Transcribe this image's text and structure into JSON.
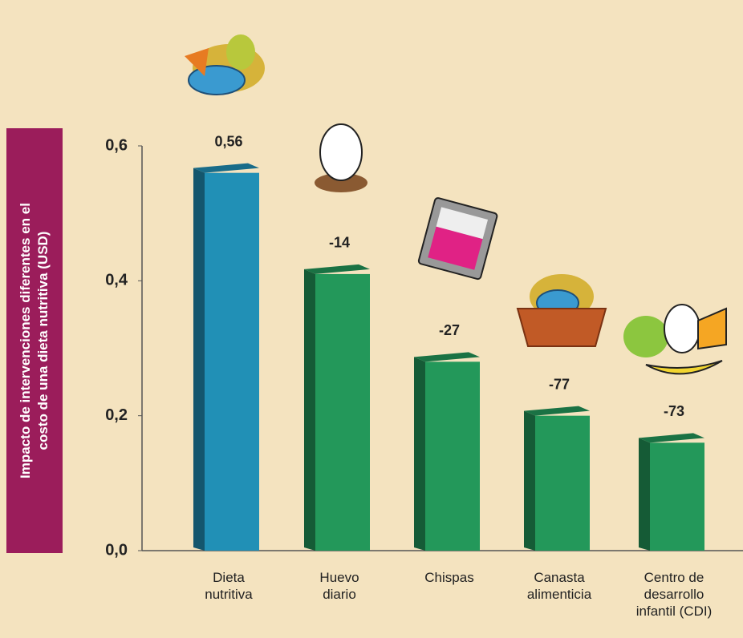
{
  "chart_data": {
    "type": "bar",
    "y_label": "Impacto de intervenciones diferentes en el\ncosto de una dieta nutritiva (USD)",
    "categories": [
      "Dieta\nnutritiva",
      "Huevo\ndiario",
      "Chispas",
      "Canasta\nalimenticia",
      "Centro de\ndesarrollo\ninfantil (CDI)"
    ],
    "values": [
      0.56,
      0.41,
      0.28,
      0.2,
      0.16
    ],
    "annotations": [
      "0,56",
      "-14",
      "-27",
      "-77",
      "-73"
    ],
    "colors": [
      "#2190b6",
      "#23985a",
      "#23985a",
      "#23985a",
      "#23985a"
    ],
    "ylim": [
      0,
      0.6
    ],
    "yticks": [
      {
        "value": 0,
        "label": "0,0"
      },
      {
        "value": 0.2,
        "label": "0,2"
      },
      {
        "value": 0.4,
        "label": "0,4"
      },
      {
        "value": 0.6,
        "label": "0,6"
      }
    ]
  }
}
